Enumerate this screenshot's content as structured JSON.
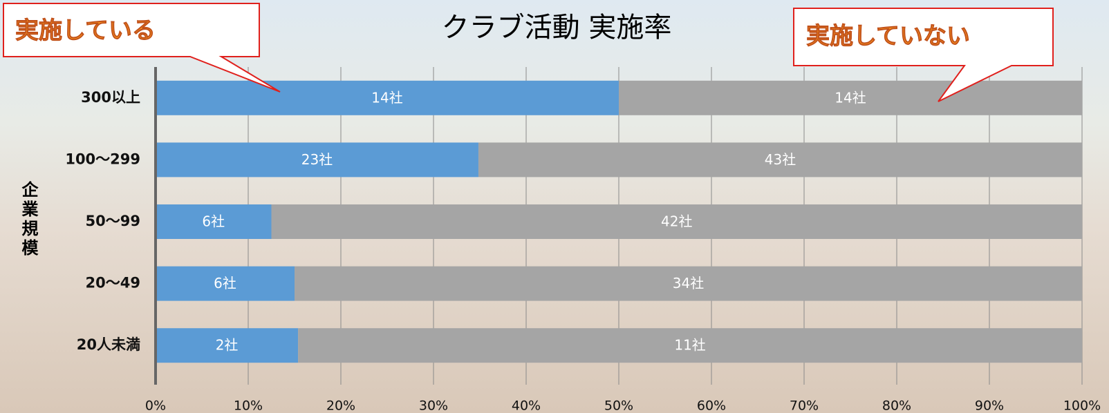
{
  "chart_data": {
    "type": "bar",
    "orientation": "horizontal",
    "stacked": "percent",
    "title": "クラブ活動 実施率",
    "y_label": "企業規模",
    "categories": [
      "300以上",
      "100～299",
      "50～99",
      "20～49",
      "20人未満"
    ],
    "series": [
      {
        "name": "実施している",
        "color": "#5b9bd5",
        "values": [
          14,
          23,
          6,
          6,
          2
        ],
        "value_labels": [
          "14社",
          "23社",
          "6社",
          "6社",
          "2社"
        ]
      },
      {
        "name": "実施していない",
        "color": "#a5a5a5",
        "values": [
          14,
          43,
          42,
          34,
          11
        ],
        "value_labels": [
          "14社",
          "43社",
          "42社",
          "34社",
          "11社"
        ]
      }
    ],
    "xlim": [
      0,
      100
    ],
    "xticks": [
      {
        "value": 0,
        "label": "0%"
      },
      {
        "value": 10,
        "label": "10%"
      },
      {
        "value": 20,
        "label": "20%"
      },
      {
        "value": 30,
        "label": "30%"
      },
      {
        "value": 40,
        "label": "40%"
      },
      {
        "value": 50,
        "label": "50%"
      },
      {
        "value": 60,
        "label": "60%"
      },
      {
        "value": 70,
        "label": "70%"
      },
      {
        "value": 80,
        "label": "80%"
      },
      {
        "value": 90,
        "label": "90%"
      },
      {
        "value": 100,
        "label": "100%"
      }
    ],
    "grid": true
  }
}
